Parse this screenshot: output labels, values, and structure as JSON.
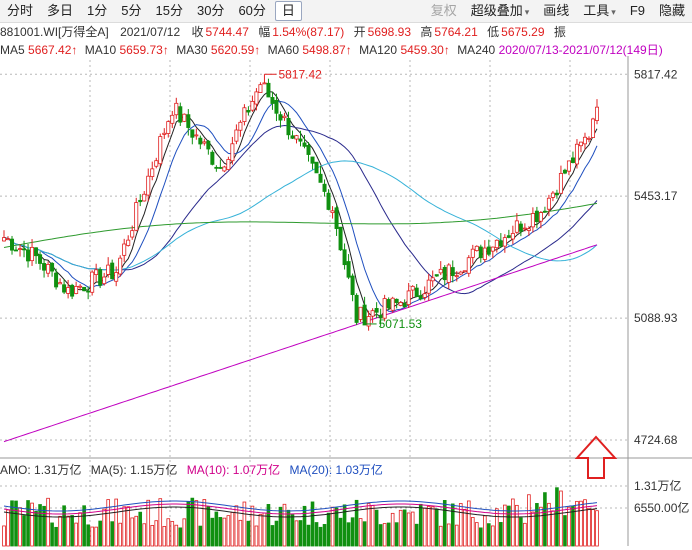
{
  "toolbar": {
    "items": [
      "分时",
      "多日",
      "1分",
      "5分",
      "15分",
      "30分",
      "60分",
      "日"
    ],
    "active_index": 7,
    "right_items": [
      "复权",
      "超级叠加",
      "画线",
      "工具",
      "F9",
      "隐藏"
    ]
  },
  "info": {
    "code": "881001.WI[万得全A]",
    "date": "2021/07/12",
    "close_label": "收",
    "close": "5744.47",
    "change_label": "幅",
    "change": "1.54%(87.17)",
    "open_label": "开",
    "open": "5698.93",
    "high_label": "高",
    "high": "5764.21",
    "low_label": "低",
    "low": "5675.29",
    "amp_label": "振"
  },
  "ma_legend": [
    {
      "label": "MA5",
      "value": "5667.42↑",
      "color": "#222222"
    },
    {
      "label": "MA10",
      "value": "5659.73↑",
      "color": "#1f4fbf"
    },
    {
      "label": "MA30",
      "value": "5620.59↑",
      "color": "#2a2a8c"
    },
    {
      "label": "MA60",
      "value": "5498.87↑",
      "color": "#36b2d8"
    },
    {
      "label": "MA120",
      "value": "5459.30↑",
      "color": "#2e9a2e"
    },
    {
      "label": "MA240",
      "value": "2020/07/13-2021/07/12(149日)",
      "color": "#c000c0"
    }
  ],
  "volume_legend": [
    {
      "label": "AMO:",
      "value": "1.31万亿",
      "color": "#222222"
    },
    {
      "label": "MA(5):",
      "value": "1.15万亿",
      "color": "#222222"
    },
    {
      "label": "MA(10):",
      "value": "1.07万亿",
      "color": "#d0008a"
    },
    {
      "label": "MA(20):",
      "value": "1.03万亿",
      "color": "#1f4fbf"
    }
  ],
  "colors": {
    "up": "#e02020",
    "down": "#109010",
    "grid": "#b8b8b8"
  },
  "chart_data": {
    "type": "candlestick",
    "title": "881001.WI 万得全A 日K线",
    "range": "2020/07/13-2021/07/12(149日)",
    "price_axis": {
      "ticks": [
        5817.42,
        5453.17,
        5088.93,
        4724.68
      ],
      "ylim": [
        4680,
        5860
      ]
    },
    "volume_axis": {
      "ticks": [
        "1.31万亿",
        "6550.00亿"
      ]
    },
    "annotations": [
      {
        "text": "5817.42",
        "type": "high"
      },
      {
        "text": "5071.53",
        "type": "low"
      }
    ],
    "summary": {
      "start_close": 5330,
      "high": 5817.42,
      "low": 5071.53,
      "end_close": 5744.47,
      "bars": 149
    },
    "series": [
      {
        "name": "MA240",
        "values": [
          4720,
          5308
        ]
      },
      {
        "name": "MA120",
        "values": [
          5300,
          5440
        ]
      }
    ]
  }
}
